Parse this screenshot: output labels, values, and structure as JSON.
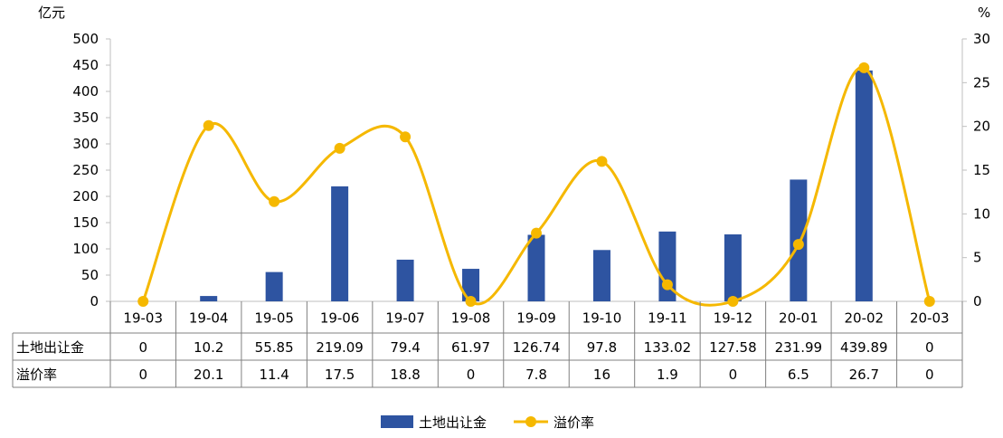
{
  "chart_data": {
    "type": "bar+line",
    "categories": [
      "19-03",
      "19-04",
      "19-05",
      "19-06",
      "19-07",
      "19-08",
      "19-09",
      "19-10",
      "19-11",
      "19-12",
      "20-01",
      "20-02",
      "20-03"
    ],
    "series": [
      {
        "name": "土地出让金",
        "type": "bar",
        "axis": "left",
        "color": "#2e54a1",
        "values": [
          0,
          10.2,
          55.85,
          219.09,
          79.4,
          61.97,
          126.74,
          97.8,
          133.02,
          127.58,
          231.99,
          439.89,
          0
        ],
        "labels": [
          "0",
          "10.2",
          "55.85",
          "219.09",
          "79.4",
          "61.97",
          "126.74",
          "97.8",
          "133.02",
          "127.58",
          "231.99",
          "439.89",
          "0"
        ]
      },
      {
        "name": "溢价率",
        "type": "line",
        "axis": "right",
        "color": "#f5b800",
        "values": [
          0,
          20.1,
          11.4,
          17.5,
          18.8,
          0,
          7.8,
          16,
          1.9,
          0,
          6.5,
          26.7,
          0
        ],
        "labels": [
          "0",
          "20.1",
          "11.4",
          "17.5",
          "18.8",
          "0",
          "7.8",
          "16",
          "1.9",
          "0",
          "6.5",
          "26.7",
          "0"
        ]
      }
    ],
    "y_left": {
      "unit": "亿元",
      "ylim": [
        0,
        500
      ],
      "ticks": [
        "0",
        "50",
        "100",
        "150",
        "200",
        "250",
        "300",
        "350",
        "400",
        "450",
        "500"
      ]
    },
    "y_right": {
      "unit": "%",
      "ylim": [
        0,
        30
      ],
      "ticks": [
        "0",
        "5",
        "10",
        "15",
        "20",
        "25",
        "30"
      ]
    },
    "grid": false,
    "legend_position": "bottom",
    "data_table": true
  }
}
